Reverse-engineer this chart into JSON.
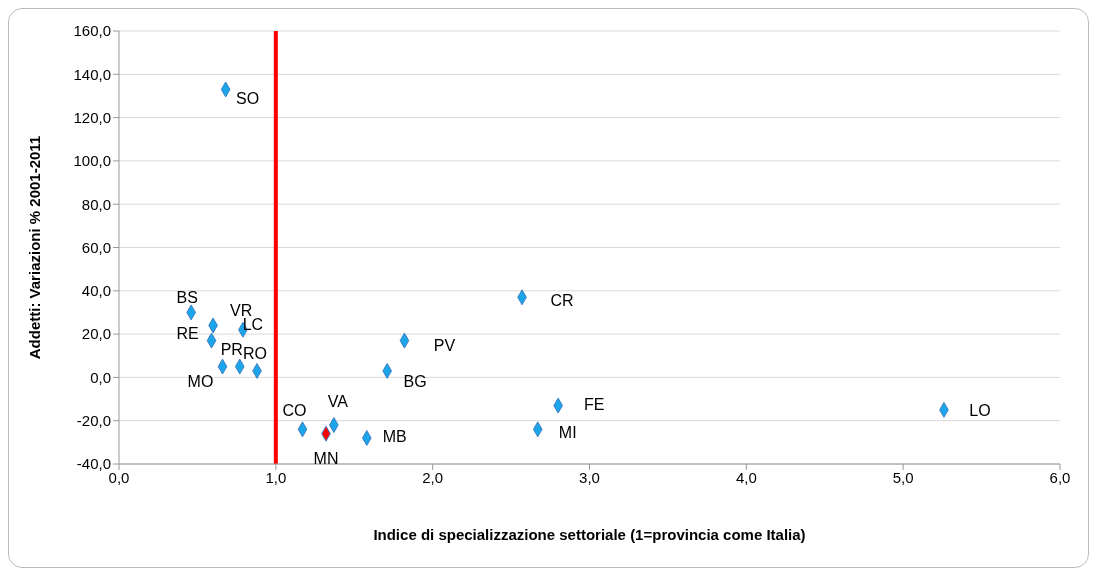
{
  "chart_data": {
    "type": "scatter",
    "xlabel": "Indice di specializzazione settoriale (1=provincia come Italia)",
    "ylabel": "Addetti: Variazioni % 2001-2011",
    "xlim": [
      0,
      6
    ],
    "xticks": [
      {
        "value": 0,
        "label": "0,0"
      },
      {
        "value": 1,
        "label": "1,0"
      },
      {
        "value": 2,
        "label": "2,0"
      },
      {
        "value": 3,
        "label": "3,0"
      },
      {
        "value": 4,
        "label": "4,0"
      },
      {
        "value": 5,
        "label": "5,0"
      },
      {
        "value": 6,
        "label": "6,0"
      }
    ],
    "ylim": [
      -40,
      160
    ],
    "yticks": [
      {
        "value": -40,
        "label": "-40,0"
      },
      {
        "value": -20,
        "label": "-20,0"
      },
      {
        "value": 0,
        "label": "0,0"
      },
      {
        "value": 20,
        "label": "20,0"
      },
      {
        "value": 40,
        "label": "40,0"
      },
      {
        "value": 60,
        "label": "60,0"
      },
      {
        "value": 80,
        "label": "80,0"
      },
      {
        "value": 100,
        "label": "100,0"
      },
      {
        "value": 120,
        "label": "120,0"
      },
      {
        "value": 140,
        "label": "140,0"
      },
      {
        "value": 160,
        "label": "160,0"
      }
    ],
    "grid": "y",
    "legend": false,
    "marker": "diamond",
    "series": [
      {
        "color": "#1ca5e8",
        "x": [
          0.68,
          0.46,
          0.6,
          0.79,
          0.59,
          0.66,
          0.77,
          0.88,
          1.17,
          1.37,
          1.58,
          1.82,
          1.71,
          2.57,
          2.8,
          2.67,
          5.26
        ],
        "values": [
          133,
          30,
          24,
          22,
          17,
          5,
          5,
          3,
          -24,
          -22,
          -28,
          17,
          3,
          37,
          -13,
          -24,
          -15
        ]
      },
      {
        "color": "#ff0000",
        "x": [
          1.32
        ],
        "values": [
          -26
        ]
      }
    ],
    "ref_lines": [
      {
        "axis": "x",
        "value": 1,
        "color": "#ff0000"
      }
    ],
    "annotations": [
      {
        "text": "SO",
        "x": 0.68,
        "y": 133
      },
      {
        "text": "BS",
        "x": 0.46,
        "y": 30
      },
      {
        "text": "VR",
        "x": 0.6,
        "y": 24
      },
      {
        "text": "LC",
        "x": 0.79,
        "y": 22
      },
      {
        "text": "RE",
        "x": 0.59,
        "y": 17
      },
      {
        "text": "MO",
        "x": 0.66,
        "y": 5
      },
      {
        "text": "PR",
        "x": 0.77,
        "y": 5
      },
      {
        "text": "RO",
        "x": 0.88,
        "y": 3
      },
      {
        "text": "CO",
        "x": 1.17,
        "y": -24
      },
      {
        "text": "VA",
        "x": 1.37,
        "y": -22
      },
      {
        "text": "MN",
        "x": 1.32,
        "y": -26
      },
      {
        "text": "MB",
        "x": 1.58,
        "y": -28
      },
      {
        "text": "PV",
        "x": 1.82,
        "y": 17
      },
      {
        "text": "BG",
        "x": 1.71,
        "y": 3
      },
      {
        "text": "CR",
        "x": 2.57,
        "y": 37
      },
      {
        "text": "FE",
        "x": 2.8,
        "y": -13
      },
      {
        "text": "MI",
        "x": 2.67,
        "y": -24
      },
      {
        "text": "LO",
        "x": 5.26,
        "y": -15
      }
    ]
  }
}
